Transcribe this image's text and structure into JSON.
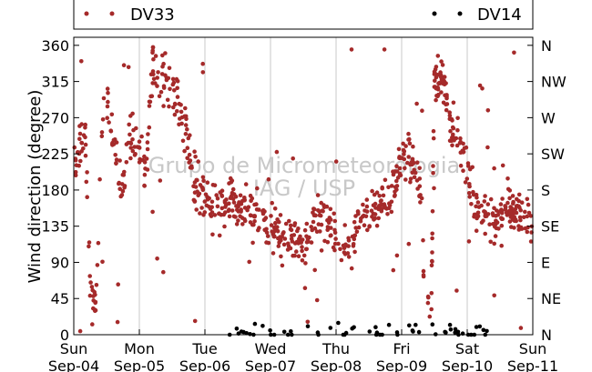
{
  "chart_data": {
    "type": "scatter",
    "ylabel": "Wind direction (degree)",
    "ylim": [
      0,
      370
    ],
    "yticks": [
      0,
      45,
      90,
      135,
      180,
      225,
      270,
      315,
      360
    ],
    "y2ticks": [
      {
        "value": 0,
        "label": "N"
      },
      {
        "value": 45,
        "label": "NE"
      },
      {
        "value": 90,
        "label": "E"
      },
      {
        "value": 135,
        "label": "SE"
      },
      {
        "value": 180,
        "label": "S"
      },
      {
        "value": 225,
        "label": "SW"
      },
      {
        "value": 270,
        "label": "W"
      },
      {
        "value": 315,
        "label": "NW"
      },
      {
        "value": 360,
        "label": "N"
      }
    ],
    "xlim": [
      0,
      7
    ],
    "xticks": [
      {
        "value": 0,
        "day": "Sun",
        "date": "Sep-04"
      },
      {
        "value": 1,
        "day": "Mon",
        "date": "Sep-05"
      },
      {
        "value": 2,
        "day": "Tue",
        "date": "Sep-06"
      },
      {
        "value": 3,
        "day": "Wed",
        "date": "Sep-07"
      },
      {
        "value": 4,
        "day": "Thu",
        "date": "Sep-08"
      },
      {
        "value": 5,
        "day": "Fri",
        "date": "Sep-09"
      },
      {
        "value": 6,
        "day": "Sat",
        "date": "Sep-10"
      },
      {
        "value": 7,
        "day": "Sun",
        "date": "Sep-11"
      }
    ],
    "grid": "vertical",
    "legend_placement": "top",
    "watermark": [
      "Grupo de Micrometeorologia",
      "IAG / USP"
    ],
    "series": [
      {
        "name": "DV33",
        "color": "#a52a2a",
        "trend": [
          [
            0.0,
            225
          ],
          [
            0.05,
            230
          ],
          [
            0.12,
            240
          ],
          [
            0.18,
            250
          ],
          [
            0.25,
            55
          ],
          [
            0.3,
            45
          ],
          [
            0.35,
            40
          ],
          [
            0.45,
            300
          ],
          [
            0.55,
            280
          ],
          [
            0.68,
            200
          ],
          [
            0.75,
            180
          ],
          [
            0.85,
            250
          ],
          [
            0.95,
            240
          ],
          [
            1.1,
            200
          ],
          [
            1.2,
            330
          ],
          [
            1.35,
            320
          ],
          [
            1.45,
            305
          ],
          [
            1.6,
            290
          ],
          [
            1.75,
            230
          ],
          [
            1.85,
            180
          ],
          [
            2.0,
            165
          ],
          [
            2.3,
            160
          ],
          [
            2.6,
            160
          ],
          [
            2.9,
            140
          ],
          [
            3.2,
            120
          ],
          [
            3.5,
            110
          ],
          [
            3.7,
            150
          ],
          [
            3.8,
            145
          ],
          [
            4.0,
            120
          ],
          [
            4.2,
            105
          ],
          [
            4.4,
            150
          ],
          [
            4.6,
            160
          ],
          [
            4.8,
            170
          ],
          [
            4.95,
            200
          ],
          [
            5.1,
            230
          ],
          [
            5.3,
            180
          ],
          [
            5.35,
            40
          ],
          [
            5.45,
            20
          ],
          [
            5.5,
            330
          ],
          [
            5.6,
            320
          ],
          [
            5.75,
            260
          ],
          [
            5.9,
            240
          ],
          [
            6.05,
            190
          ],
          [
            6.15,
            150
          ],
          [
            6.4,
            140
          ],
          [
            6.6,
            160
          ],
          [
            6.8,
            145
          ],
          [
            7.0,
            150
          ]
        ],
        "spread": 14,
        "count": 900
      },
      {
        "name": "DV14",
        "color": "#000000",
        "trend": [
          [
            2.3,
            5
          ],
          [
            2.7,
            4
          ],
          [
            3.0,
            3
          ],
          [
            5.3,
            5
          ],
          [
            5.7,
            6
          ],
          [
            6.2,
            4
          ],
          [
            6.35,
            12
          ],
          [
            6.45,
            18
          ]
        ],
        "spread": 5,
        "count": 60
      }
    ]
  }
}
